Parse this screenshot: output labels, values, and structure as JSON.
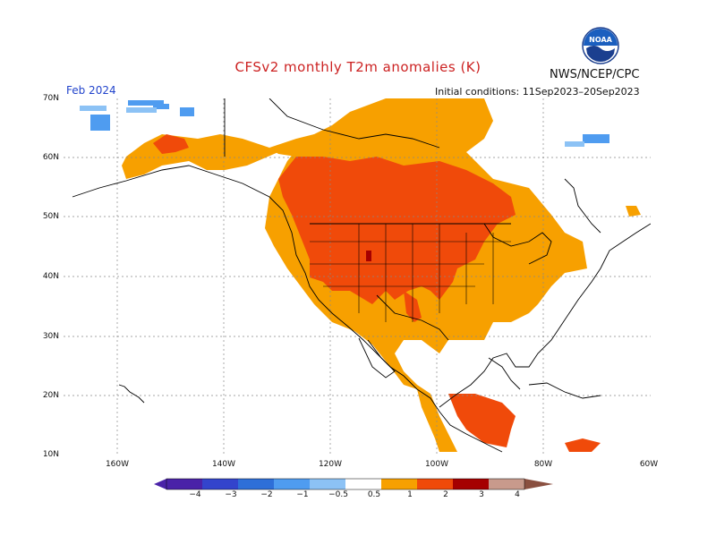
{
  "header": {
    "title": "CFSv2 monthly T2m anomalies (K)",
    "agency": "NWS/NCEP/CPC",
    "period": "Feb 2024",
    "initial_conditions": "Initial conditions: 11Sep2023–20Sep2023"
  },
  "logo": {
    "icon": "noaa-logo",
    "text": "NOAA"
  },
  "axes": {
    "lat_labels": [
      "70N",
      "60N",
      "50N",
      "40N",
      "30N",
      "20N",
      "10N"
    ],
    "lon_labels": [
      "160W",
      "140W",
      "120W",
      "100W",
      "80W",
      "60W"
    ]
  },
  "colorbar": {
    "tick_labels": [
      "−4",
      "−3",
      "−2",
      "−1",
      "−0.5",
      "0.5",
      "1",
      "2",
      "3",
      "4"
    ],
    "colors": [
      "#4a22a8",
      "#3344cc",
      "#2e6fd8",
      "#4f9cf0",
      "#8cc2f5",
      "#ffffff",
      "#f7a000",
      "#f04a0a",
      "#a50000",
      "#c89a8c",
      "#8a5040"
    ]
  }
}
